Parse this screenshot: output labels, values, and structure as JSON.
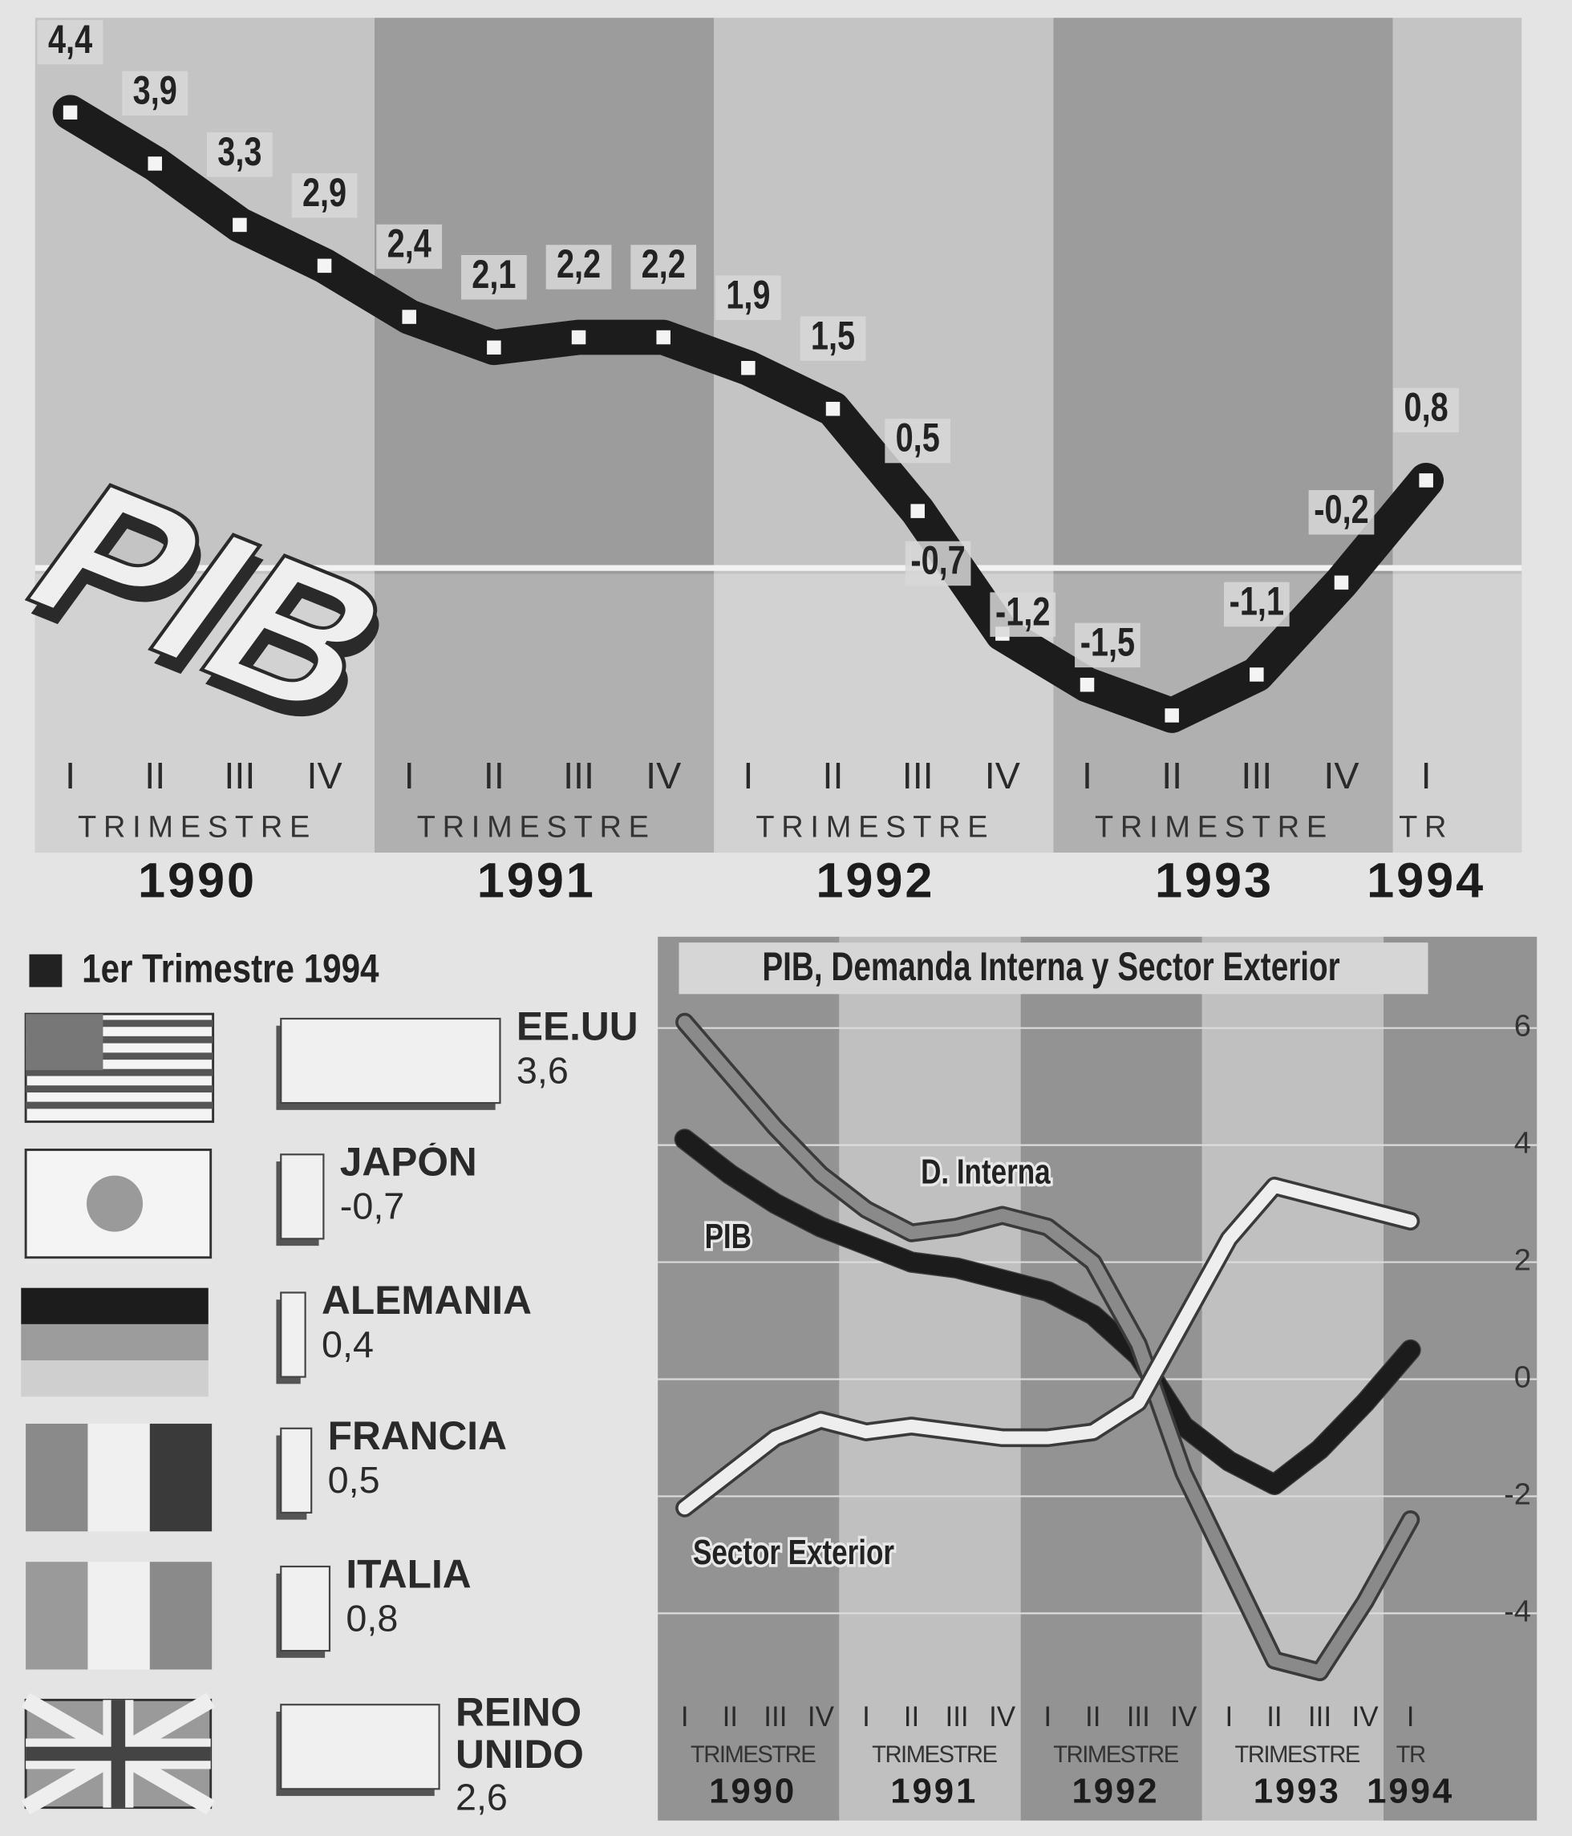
{
  "chart_data": [
    {
      "type": "line",
      "logo": "PIB",
      "categories": [
        "I",
        "II",
        "III",
        "IV",
        "I",
        "II",
        "III",
        "IV",
        "I",
        "II",
        "III",
        "IV",
        "I",
        "II",
        "III",
        "IV",
        "I"
      ],
      "period_labels": [
        "TRIMESTRE",
        "TRIMESTRE",
        "TRIMESTRE",
        "TRIMESTRE",
        "TR"
      ],
      "years": [
        "1990",
        "1991",
        "1992",
        "1993",
        "1994"
      ],
      "values": [
        4.4,
        3.9,
        3.3,
        2.9,
        2.4,
        2.1,
        2.2,
        2.2,
        1.9,
        1.5,
        0.5,
        -0.7,
        -1.2,
        -1.5,
        -1.1,
        -0.2,
        0.8
      ],
      "value_labels": [
        "4,4",
        "3,9",
        "3,3",
        "2,9",
        "2,4",
        "2,1",
        "2,2",
        "2,2",
        "1,9",
        "1,5",
        "0,5",
        "-0,7",
        "-1,2",
        "-1,5",
        "-1,1",
        "-0,2",
        "0,8"
      ],
      "color": "#1c1c1c"
    },
    {
      "type": "bar",
      "legend": "1er Trimestre 1994",
      "categories": [
        "EE.UU",
        "JAPÓN",
        "ALEMANIA",
        "FRANCIA",
        "ITALIA",
        "REINO UNIDO"
      ],
      "values": [
        3.6,
        -0.7,
        0.4,
        0.5,
        0.8,
        2.6
      ],
      "value_labels": [
        "3,6",
        "-0,7",
        "0,4",
        "0,5",
        "0,8",
        "2,6"
      ],
      "color": "#f0f0f0"
    },
    {
      "type": "line",
      "title": "PIB, Demanda Interna y Sector Exterior",
      "categories": [
        "I",
        "II",
        "III",
        "IV",
        "I",
        "II",
        "III",
        "IV",
        "I",
        "II",
        "III",
        "IV",
        "I",
        "II",
        "III",
        "IV",
        "I"
      ],
      "period_labels": [
        "TRIMESTRE",
        "TRIMESTRE",
        "TRIMESTRE",
        "TRIMESTRE",
        "TR"
      ],
      "years": [
        "1990",
        "1991",
        "1992",
        "1993",
        "1994"
      ],
      "series": [
        {
          "name": "PIB",
          "color": "#1c1c1c",
          "values": [
            4.1,
            3.5,
            3.0,
            2.6,
            2.3,
            2.0,
            1.9,
            1.7,
            1.5,
            1.1,
            0.4,
            -0.8,
            -1.4,
            -1.8,
            -1.2,
            -0.4,
            0.5
          ]
        },
        {
          "name": "D. Interna",
          "color": "#8a8a8a",
          "values": [
            6.1,
            5.2,
            4.3,
            3.5,
            2.9,
            2.5,
            2.6,
            2.8,
            2.6,
            2.0,
            0.6,
            -1.6,
            -3.2,
            -4.8,
            -5.0,
            -3.8,
            -2.4
          ]
        },
        {
          "name": "Sector Exterior",
          "color": "#eeeeee",
          "values": [
            -2.2,
            -1.6,
            -1.0,
            -0.7,
            -0.9,
            -0.8,
            -0.9,
            -1.0,
            -1.0,
            -0.9,
            -0.4,
            1.0,
            2.4,
            3.3,
            3.1,
            2.9,
            2.7
          ]
        }
      ],
      "ylim": [
        -5.5,
        7.5
      ],
      "yticks": [
        6,
        4,
        2,
        0,
        -2,
        -4
      ],
      "grid": true
    }
  ]
}
